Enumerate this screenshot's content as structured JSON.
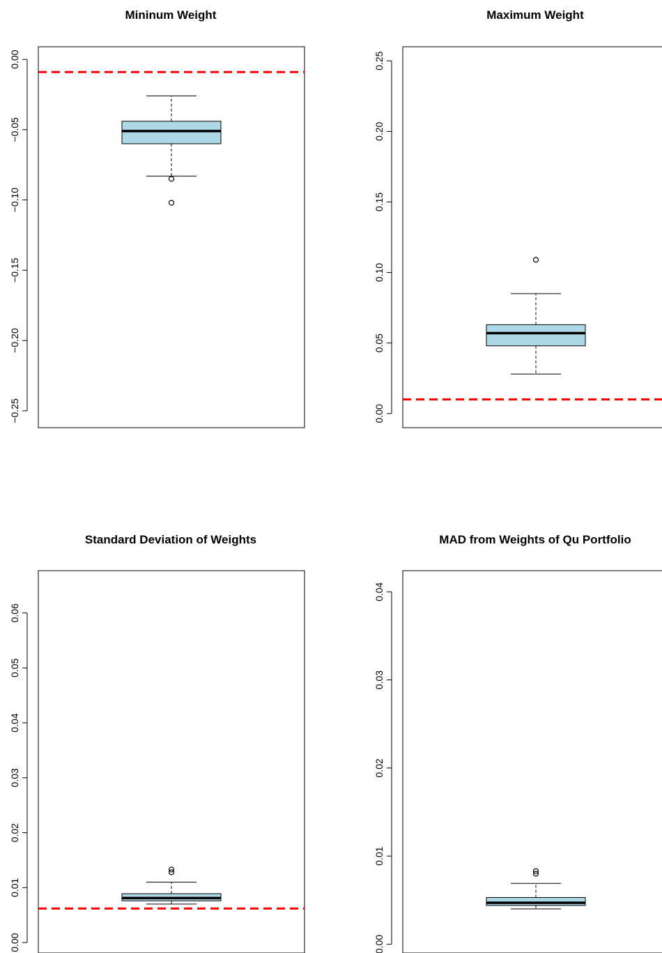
{
  "chart_data": [
    {
      "type": "boxplot",
      "title": "Mininum Weight",
      "yticks": [
        0.0,
        -0.05,
        -0.1,
        -0.15,
        -0.2,
        -0.25
      ],
      "ytick_labels": [
        "0.00",
        "−0.05",
        "−0.10",
        "−0.15",
        "−0.20",
        "−0.25"
      ],
      "ylim": [
        -0.262,
        0.009
      ],
      "box": {
        "whisker_low": -0.083,
        "q1": -0.06,
        "median": -0.051,
        "q3": -0.044,
        "whisker_high": -0.026
      },
      "outliers": [
        -0.085,
        -0.102
      ],
      "reference_line": -0.009,
      "reference_color": "#ff0000",
      "box_fill": "#add8e6"
    },
    {
      "type": "boxplot",
      "title": "Maximum Weight",
      "yticks": [
        0.0,
        0.05,
        0.1,
        0.15,
        0.2,
        0.25
      ],
      "ytick_labels": [
        "0.00",
        "0.05",
        "0.10",
        "0.15",
        "0.20",
        "0.25"
      ],
      "ylim": [
        -0.01,
        0.26
      ],
      "box": {
        "whisker_low": 0.028,
        "q1": 0.048,
        "median": 0.057,
        "q3": 0.063,
        "whisker_high": 0.085
      },
      "outliers": [
        0.109
      ],
      "reference_line": 0.01,
      "reference_color": "#ff0000",
      "box_fill": "#add8e6"
    },
    {
      "type": "boxplot",
      "title": "Standard Deviation of Weights",
      "yticks": [
        0.0,
        0.01,
        0.02,
        0.03,
        0.04,
        0.05,
        0.06
      ],
      "ytick_labels": [
        "0.00",
        "0.01",
        "0.02",
        "0.03",
        "0.04",
        "0.05",
        "0.06"
      ],
      "ylim": [
        -0.0019,
        0.0677
      ],
      "box": {
        "whisker_low": 0.007,
        "q1": 0.0076,
        "median": 0.0081,
        "q3": 0.0089,
        "whisker_high": 0.011
      },
      "outliers": [
        0.0128,
        0.0133
      ],
      "reference_line": 0.0062,
      "reference_color": "#ff0000",
      "box_fill": "#add8e6"
    },
    {
      "type": "boxplot",
      "title": "MAD from Weights of Qu Portfolio",
      "yticks": [
        0.0,
        0.01,
        0.02,
        0.03,
        0.04
      ],
      "ytick_labels": [
        "0.00",
        "0.01",
        "0.02",
        "0.03",
        "0.04"
      ],
      "ylim": [
        -0.001,
        0.0424
      ],
      "box": {
        "whisker_low": 0.004,
        "q1": 0.0044,
        "median": 0.0047,
        "q3": 0.0053,
        "whisker_high": 0.0069
      },
      "outliers": [
        0.008,
        0.0083
      ],
      "reference_line": null,
      "reference_color": "#ff0000",
      "box_fill": "#add8e6"
    }
  ]
}
